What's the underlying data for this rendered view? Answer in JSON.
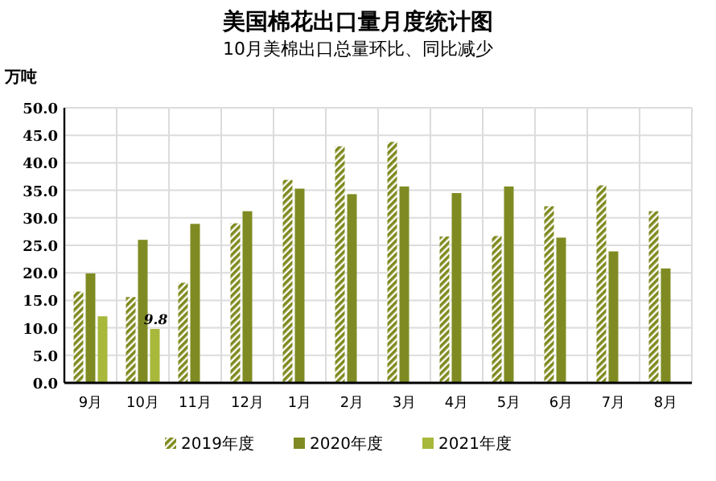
{
  "chart_data": {
    "type": "bar",
    "title": "美国棉花出口量月度统计图",
    "subtitle": "10月美棉出口总量环比、同比减少",
    "ylabel": "万吨",
    "categories": [
      "9月",
      "10月",
      "11月",
      "12月",
      "1月",
      "2月",
      "3月",
      "4月",
      "5月",
      "6月",
      "7月",
      "8月"
    ],
    "series": [
      {
        "name": "2019年度",
        "color": "#7f8a1e",
        "values": [
          16.6,
          15.6,
          18.2,
          29.0,
          36.9,
          43.0,
          43.8,
          26.6,
          26.7,
          32.1,
          35.9,
          31.2
        ]
      },
      {
        "name": "2020年度",
        "color": "#7f8b22",
        "values": [
          19.9,
          26.0,
          28.9,
          31.2,
          35.3,
          34.3,
          35.7,
          34.5,
          35.7,
          26.4,
          23.9,
          20.8
        ]
      },
      {
        "name": "2021年度",
        "color": "#a8b83a",
        "values": [
          12.1,
          9.8,
          null,
          null,
          null,
          null,
          null,
          null,
          null,
          null,
          null,
          null
        ]
      }
    ],
    "ylim": [
      0,
      50
    ],
    "yticks": [
      {
        "value": 0,
        "label": "0.0"
      },
      {
        "value": 5,
        "label": "5.0"
      },
      {
        "value": 10,
        "label": "10.0"
      },
      {
        "value": 15,
        "label": "15.0"
      },
      {
        "value": 20,
        "label": "20.0"
      },
      {
        "value": 25,
        "label": "25.0"
      },
      {
        "value": 30,
        "label": "30.0"
      },
      {
        "value": 35,
        "label": "35.0"
      },
      {
        "value": 40,
        "label": "40.0"
      },
      {
        "value": 45,
        "label": "45.0"
      },
      {
        "value": 50,
        "label": "50.0"
      }
    ],
    "annotations": [
      {
        "text": "9.8",
        "x": "10月",
        "y": 9.8
      }
    ],
    "grid": true,
    "legend": "bottom"
  }
}
